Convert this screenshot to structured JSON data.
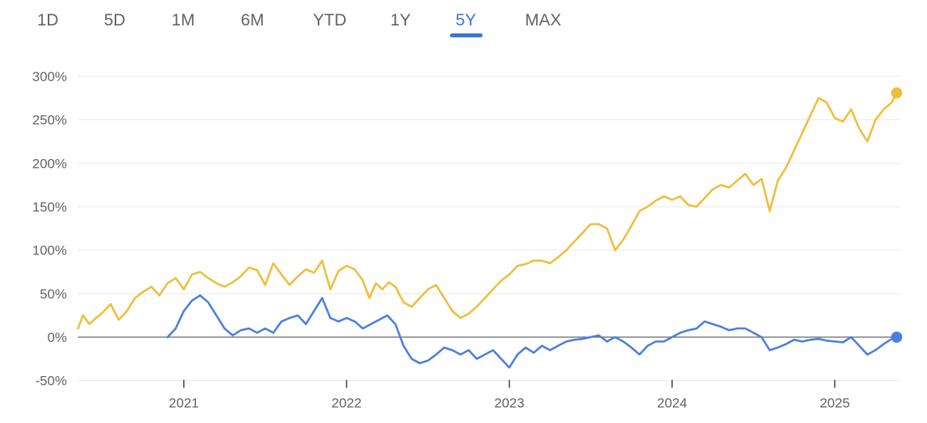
{
  "range_tabs": {
    "items": [
      "1D",
      "5D",
      "1M",
      "6M",
      "YTD",
      "1Y",
      "5Y",
      "MAX"
    ],
    "selected": "5Y"
  },
  "colors": {
    "accent": "#3c74d8",
    "series_gold": "#f0be3c",
    "series_blue": "#4a7fe0",
    "grid": "#e8eaed",
    "zero_line": "#5f6368"
  },
  "chart_data": {
    "type": "line",
    "y_unit": "%",
    "ylim": [
      -50,
      300
    ],
    "y_ticks": [
      300,
      250,
      200,
      150,
      100,
      50,
      0,
      -50
    ],
    "y_tick_labels": [
      "300%",
      "250%",
      "200%",
      "150%",
      "100%",
      "50%",
      "0%",
      "-50%"
    ],
    "xlim": [
      2020.35,
      2025.4
    ],
    "x_ticks": [
      2021,
      2022,
      2023,
      2024,
      2025
    ],
    "x_tick_labels": [
      "2021",
      "2022",
      "2023",
      "2024",
      "2025"
    ],
    "grid": true,
    "series": [
      {
        "color": "#f0be3c",
        "x": [
          2020.35,
          2020.38,
          2020.42,
          2020.46,
          2020.5,
          2020.55,
          2020.6,
          2020.65,
          2020.7,
          2020.75,
          2020.8,
          2020.85,
          2020.9,
          2020.95,
          2021.0,
          2021.05,
          2021.1,
          2021.15,
          2021.2,
          2021.25,
          2021.3,
          2021.35,
          2021.4,
          2021.45,
          2021.5,
          2021.55,
          2021.6,
          2021.65,
          2021.7,
          2021.75,
          2021.8,
          2021.85,
          2021.9,
          2021.95,
          2022.0,
          2022.05,
          2022.1,
          2022.14,
          2022.18,
          2022.22,
          2022.26,
          2022.3,
          2022.35,
          2022.4,
          2022.45,
          2022.5,
          2022.55,
          2022.6,
          2022.65,
          2022.7,
          2022.75,
          2022.8,
          2022.85,
          2022.9,
          2022.95,
          2023.0,
          2023.05,
          2023.1,
          2023.15,
          2023.2,
          2023.25,
          2023.3,
          2023.35,
          2023.4,
          2023.45,
          2023.5,
          2023.55,
          2023.6,
          2023.65,
          2023.7,
          2023.75,
          2023.8,
          2023.85,
          2023.9,
          2023.95,
          2024.0,
          2024.05,
          2024.1,
          2024.15,
          2024.2,
          2024.25,
          2024.3,
          2024.35,
          2024.4,
          2024.45,
          2024.5,
          2024.55,
          2024.6,
          2024.65,
          2024.7,
          2024.75,
          2024.8,
          2024.85,
          2024.9,
          2024.95,
          2025.0,
          2025.05,
          2025.1,
          2025.15,
          2025.2,
          2025.25,
          2025.3,
          2025.35,
          2025.38
        ],
        "y": [
          10,
          25,
          15,
          22,
          28,
          38,
          20,
          30,
          45,
          52,
          58,
          48,
          62,
          68,
          55,
          72,
          75,
          68,
          62,
          58,
          63,
          70,
          80,
          77,
          60,
          85,
          72,
          60,
          70,
          78,
          74,
          88,
          55,
          76,
          82,
          78,
          65,
          45,
          62,
          55,
          63,
          58,
          40,
          35,
          45,
          55,
          60,
          45,
          30,
          22,
          27,
          35,
          45,
          55,
          65,
          72,
          82,
          84,
          88,
          88,
          85,
          92,
          100,
          110,
          120,
          130,
          130,
          125,
          100,
          112,
          128,
          145,
          150,
          157,
          162,
          158,
          162,
          152,
          150,
          160,
          170,
          175,
          172,
          180,
          188,
          175,
          182,
          145,
          180,
          195,
          215,
          235,
          255,
          275,
          270,
          252,
          248,
          262,
          240,
          225,
          250,
          262,
          270,
          281
        ]
      },
      {
        "color": "#4a7fe0",
        "x": [
          2020.9,
          2020.95,
          2021.0,
          2021.05,
          2021.1,
          2021.15,
          2021.2,
          2021.25,
          2021.3,
          2021.35,
          2021.4,
          2021.45,
          2021.5,
          2021.55,
          2021.6,
          2021.65,
          2021.7,
          2021.75,
          2021.8,
          2021.85,
          2021.9,
          2021.95,
          2022.0,
          2022.05,
          2022.1,
          2022.15,
          2022.2,
          2022.25,
          2022.3,
          2022.35,
          2022.4,
          2022.45,
          2022.5,
          2022.55,
          2022.6,
          2022.65,
          2022.7,
          2022.75,
          2022.8,
          2022.85,
          2022.9,
          2022.95,
          2023.0,
          2023.05,
          2023.1,
          2023.15,
          2023.2,
          2023.25,
          2023.3,
          2023.35,
          2023.4,
          2023.45,
          2023.5,
          2023.55,
          2023.6,
          2023.65,
          2023.7,
          2023.75,
          2023.8,
          2023.85,
          2023.9,
          2023.95,
          2024.0,
          2024.05,
          2024.1,
          2024.15,
          2024.2,
          2024.25,
          2024.3,
          2024.35,
          2024.4,
          2024.45,
          2024.5,
          2024.55,
          2024.6,
          2024.65,
          2024.7,
          2024.75,
          2024.8,
          2024.85,
          2024.9,
          2024.95,
          2025.0,
          2025.05,
          2025.1,
          2025.15,
          2025.2,
          2025.25,
          2025.3,
          2025.35,
          2025.38
        ],
        "y": [
          0,
          10,
          30,
          42,
          48,
          40,
          25,
          10,
          2,
          8,
          10,
          5,
          10,
          5,
          18,
          22,
          25,
          15,
          30,
          45,
          22,
          18,
          22,
          18,
          10,
          15,
          20,
          25,
          15,
          -10,
          -25,
          -30,
          -27,
          -20,
          -12,
          -15,
          -20,
          -15,
          -25,
          -20,
          -15,
          -25,
          -35,
          -20,
          -12,
          -18,
          -10,
          -15,
          -10,
          -5,
          -3,
          -2,
          0,
          2,
          -5,
          0,
          -5,
          -12,
          -20,
          -10,
          -5,
          -5,
          0,
          5,
          8,
          10,
          18,
          15,
          12,
          8,
          10,
          10,
          5,
          0,
          -15,
          -12,
          -8,
          -3,
          -5,
          -3,
          -2,
          -4,
          -5,
          -6,
          0,
          -10,
          -20,
          -15,
          -8,
          -2,
          0
        ]
      }
    ],
    "end_markers": [
      {
        "x": 2025.38,
        "y": 281
      },
      {
        "x": 2025.38,
        "y": 0
      }
    ]
  }
}
